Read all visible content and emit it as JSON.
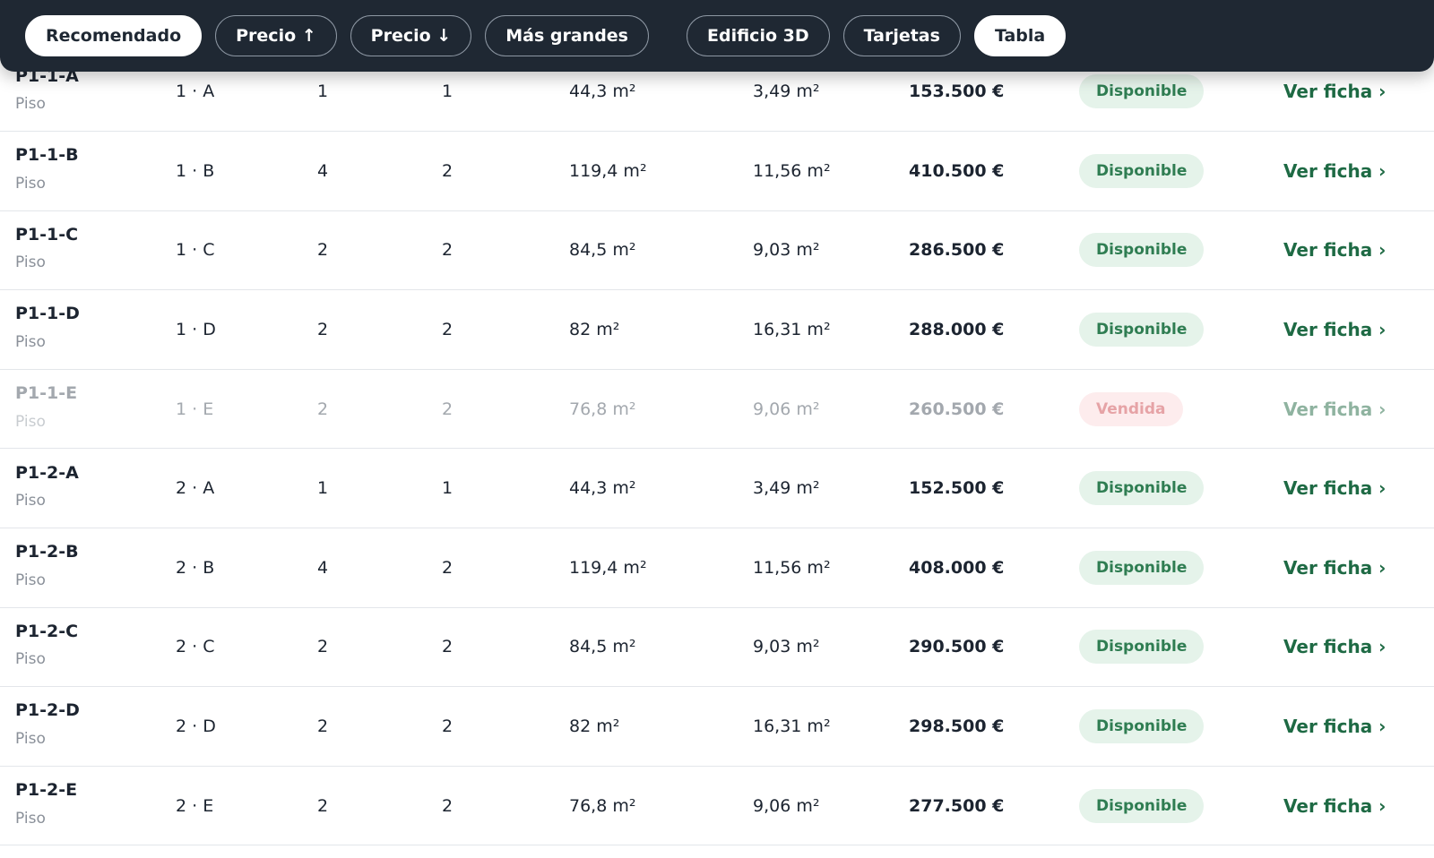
{
  "toolbar": {
    "sort_buttons": [
      {
        "label": "Recomendado",
        "active": true
      },
      {
        "label": "Precio ↑",
        "active": false
      },
      {
        "label": "Precio ↓",
        "active": false
      },
      {
        "label": "Más grandes",
        "active": false
      }
    ],
    "view_buttons": [
      {
        "label": "Edificio 3D",
        "active": false
      },
      {
        "label": "Tarjetas",
        "active": false
      },
      {
        "label": "Tabla",
        "active": true
      }
    ]
  },
  "table": {
    "rows": [
      {
        "id": "P1-1-A",
        "type": "Piso",
        "unit": "1 · A",
        "bedrooms": 1,
        "bathrooms": 1,
        "area": "44,3 m²",
        "terrace": "3,49 m²",
        "price": "153.500 €",
        "status": "Disponible",
        "link": "Ver ficha ›",
        "sold": false
      },
      {
        "id": "P1-1-B",
        "type": "Piso",
        "unit": "1 · B",
        "bedrooms": 4,
        "bathrooms": 2,
        "area": "119,4 m²",
        "terrace": "11,56 m²",
        "price": "410.500 €",
        "status": "Disponible",
        "link": "Ver ficha ›",
        "sold": false
      },
      {
        "id": "P1-1-C",
        "type": "Piso",
        "unit": "1 · C",
        "bedrooms": 2,
        "bathrooms": 2,
        "area": "84,5 m²",
        "terrace": "9,03 m²",
        "price": "286.500 €",
        "status": "Disponible",
        "link": "Ver ficha ›",
        "sold": false
      },
      {
        "id": "P1-1-D",
        "type": "Piso",
        "unit": "1 · D",
        "bedrooms": 2,
        "bathrooms": 2,
        "area": "82 m²",
        "terrace": "16,31 m²",
        "price": "288.000 €",
        "status": "Disponible",
        "link": "Ver ficha ›",
        "sold": false
      },
      {
        "id": "P1-1-E",
        "type": "Piso",
        "unit": "1 · E",
        "bedrooms": 2,
        "bathrooms": 2,
        "area": "76,8 m²",
        "terrace": "9,06 m²",
        "price": "260.500 €",
        "status": "Vendida",
        "link": "Ver ficha ›",
        "sold": true
      },
      {
        "id": "P1-2-A",
        "type": "Piso",
        "unit": "2 · A",
        "bedrooms": 1,
        "bathrooms": 1,
        "area": "44,3 m²",
        "terrace": "3,49 m²",
        "price": "152.500 €",
        "status": "Disponible",
        "link": "Ver ficha ›",
        "sold": false
      },
      {
        "id": "P1-2-B",
        "type": "Piso",
        "unit": "2 · B",
        "bedrooms": 4,
        "bathrooms": 2,
        "area": "119,4 m²",
        "terrace": "11,56 m²",
        "price": "408.000 €",
        "status": "Disponible",
        "link": "Ver ficha ›",
        "sold": false
      },
      {
        "id": "P1-2-C",
        "type": "Piso",
        "unit": "2 · C",
        "bedrooms": 2,
        "bathrooms": 2,
        "area": "84,5 m²",
        "terrace": "9,03 m²",
        "price": "290.500 €",
        "status": "Disponible",
        "link": "Ver ficha ›",
        "sold": false
      },
      {
        "id": "P1-2-D",
        "type": "Piso",
        "unit": "2 · D",
        "bedrooms": 2,
        "bathrooms": 2,
        "area": "82 m²",
        "terrace": "16,31 m²",
        "price": "298.500 €",
        "status": "Disponible",
        "link": "Ver ficha ›",
        "sold": false
      },
      {
        "id": "P1-2-E",
        "type": "Piso",
        "unit": "2 · E",
        "bedrooms": 2,
        "bathrooms": 2,
        "area": "76,8 m²",
        "terrace": "9,06 m²",
        "price": "277.500 €",
        "status": "Disponible",
        "link": "Ver ficha ›",
        "sold": false
      }
    ]
  }
}
